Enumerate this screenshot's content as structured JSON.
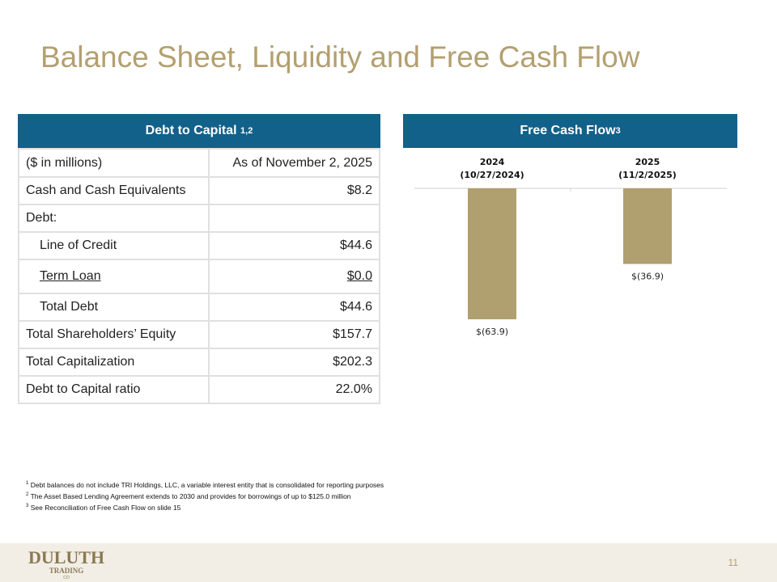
{
  "title": "Balance Sheet, Liquidity and Free Cash Flow",
  "table": {
    "title": "Debt to Capital",
    "title_note": "1,2",
    "rows": [
      {
        "cells": [
          "($ in millions)",
          "As of November 2, 2025"
        ]
      },
      {
        "cells": [
          "Cash and Cash Equivalents",
          "$8.2"
        ]
      },
      {
        "cells": [
          "Debt:"
        ]
      },
      {
        "cells": [
          "Line of Credit",
          "$44.6"
        ],
        "indent": true
      },
      {
        "cells": [
          "Term Loan",
          "$0.0"
        ],
        "indent": true,
        "underline": true
      },
      {
        "cells": [
          "Total Debt",
          "$44.6"
        ],
        "indent": true
      },
      {
        "cells": [
          "Total Shareholders’ Equity",
          "$157.7"
        ]
      },
      {
        "cells": [
          "Total Capitalization",
          "$202.3"
        ]
      },
      {
        "cells": [
          "Debt to Capital ratio",
          "22.0%"
        ]
      }
    ]
  },
  "chart_data": {
    "type": "bar",
    "title": "Free Cash Flow",
    "title_note": "3",
    "categories": [
      "2024",
      "2025"
    ],
    "category_dates": [
      "(10/27/2024)",
      "(11/2/2025)"
    ],
    "values": [
      -63.9,
      -36.9
    ],
    "value_labels": [
      "$(63.9)",
      "$(36.9)"
    ],
    "color": "#b09f6f"
  },
  "footnotes": [
    {
      "mark": "1",
      "text": "Debt balances do not include TRI Holdings, LLC, a variable interest entity that is consolidated for reporting purposes"
    },
    {
      "mark": "2",
      "text": "The Asset Based Lending Agreement extends to 2030 and provides for borrowings of up to $125.0 million"
    },
    {
      "mark": "3",
      "text": "See Reconciliation of Free Cash Flow on slide 15"
    }
  ],
  "footer": {
    "logo": "DULUTH",
    "logo_sub": "TRADING",
    "logo_co": "CO",
    "page": "11"
  }
}
